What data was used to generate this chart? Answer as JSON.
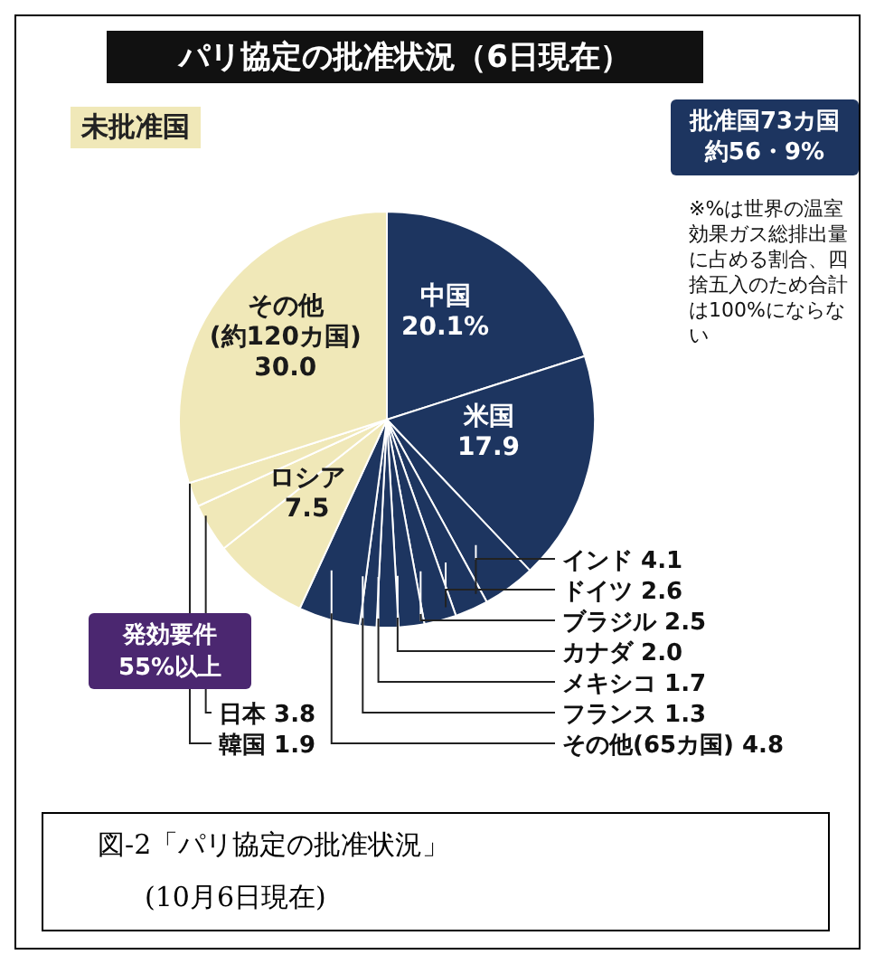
{
  "chart_data": {
    "type": "pie",
    "title": "パリ協定の批准状況（6日現在）",
    "categories": [
      "中国",
      "米国",
      "インド",
      "ドイツ",
      "ブラジル",
      "カナダ",
      "メキシコ",
      "フランス",
      "その他(65カ国)",
      "ロシア",
      "日本",
      "韓国",
      "その他(約120カ国)"
    ],
    "values": [
      20.1,
      17.9,
      4.1,
      2.6,
      2.5,
      2.0,
      1.7,
      1.3,
      4.8,
      7.5,
      3.8,
      1.9,
      30.0
    ],
    "value_labels": [
      "20.1%",
      "17.9",
      "4.1",
      "2.6",
      "2.5",
      "2.0",
      "1.7",
      "1.3",
      "4.8",
      "7.5",
      "3.8",
      "1.9",
      "30.0"
    ],
    "colors": [
      "#1d3560",
      "#1d3560",
      "#1d3560",
      "#1d3560",
      "#1d3560",
      "#1d3560",
      "#1d3560",
      "#1d3560",
      "#1d3560",
      "#f0e8b8",
      "#f0e8b8",
      "#f0e8b8",
      "#f0e8b8"
    ],
    "legend": false,
    "annotations": [
      "未批准国",
      "批准国73カ国約56・9%",
      "発効要件55%以上",
      "※%は世界の温室効果ガス総排出量に占める割合、四捨五入のため合計は100%にならない",
      "図-2「パリ協定の批准状況」",
      "(10月6日現在)"
    ]
  }
}
